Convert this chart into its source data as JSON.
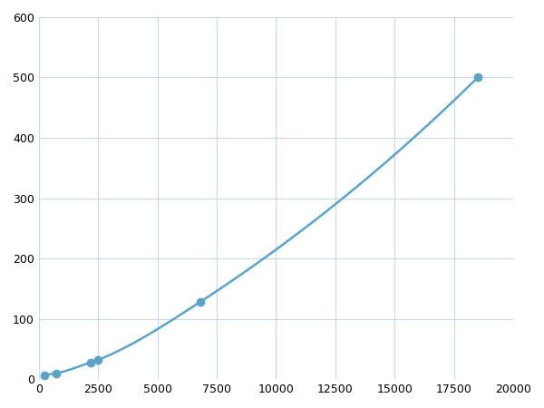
{
  "x": [
    250,
    750,
    2200,
    2500,
    6800,
    18500
  ],
  "y": [
    7,
    10,
    28,
    32,
    128,
    500
  ],
  "line_color": "#5ba3c9",
  "marker_color": "#5ba3c9",
  "marker_size": 6,
  "line_width": 1.8,
  "xlim": [
    0,
    20000
  ],
  "ylim": [
    0,
    600
  ],
  "xticks": [
    0,
    2500,
    5000,
    7500,
    10000,
    12500,
    15000,
    17500,
    20000
  ],
  "yticks": [
    0,
    100,
    200,
    300,
    400,
    500,
    600
  ],
  "grid_color": "#c8d8e8",
  "background_color": "#ffffff",
  "fig_background": "#ffffff"
}
